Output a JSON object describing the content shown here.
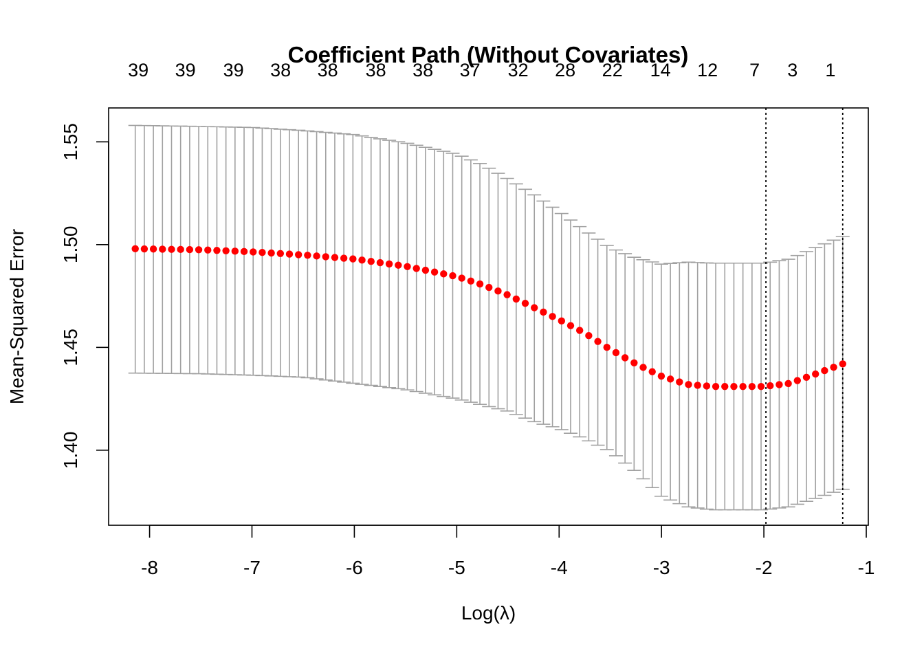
{
  "chart_data": {
    "type": "scatter",
    "title": "Coefficient Path (Without Covariates)",
    "xlabel": "Log(λ)",
    "ylabel": "Mean-Squared Error",
    "xlim": [
      -8.4,
      -0.98
    ],
    "ylim": [
      1.3635,
      1.5665
    ],
    "x_ticks": [
      -8,
      -7,
      -6,
      -5,
      -4,
      -3,
      -2,
      -1
    ],
    "x_tick_labels": [
      "-8",
      "-7",
      "-6",
      "-5",
      "-4",
      "-3",
      "-2",
      "-1"
    ],
    "y_ticks": [
      1.4,
      1.45,
      1.5,
      1.55
    ],
    "y_tick_labels": [
      "1.40",
      "1.45",
      "1.50",
      "1.55"
    ],
    "top_counts": {
      "labels": [
        "39",
        "39",
        "39",
        "38",
        "38",
        "38",
        "38",
        "37",
        "32",
        "28",
        "22",
        "14",
        "12",
        "7",
        "3",
        "1"
      ],
      "x": [
        -8.11,
        -7.65,
        -7.18,
        -6.72,
        -6.26,
        -5.79,
        -5.33,
        -4.87,
        -4.4,
        -3.94,
        -3.48,
        -3.01,
        -2.55,
        -2.09,
        -1.72,
        -1.35
      ]
    },
    "vlines": [
      -1.98,
      -1.23
    ],
    "point_color": "#ff0000",
    "errorbar_color": "#a0a0a0",
    "mse_knots": {
      "x": [
        -8.14,
        -7.5,
        -7.0,
        -6.5,
        -6.0,
        -5.5,
        -5.0,
        -4.75,
        -4.5,
        -4.25,
        -4.0,
        -3.75,
        -3.5,
        -3.25,
        -3.0,
        -2.75,
        -2.5,
        -2.25,
        -2.0,
        -1.75,
        -1.5,
        -1.23
      ],
      "mse": [
        1.498,
        1.4975,
        1.4965,
        1.495,
        1.493,
        1.4895,
        1.4845,
        1.4805,
        1.4755,
        1.4695,
        1.4635,
        1.457,
        1.449,
        1.442,
        1.436,
        1.432,
        1.431,
        1.431,
        1.431,
        1.4325,
        1.437,
        1.442
      ],
      "upper": [
        1.558,
        1.5575,
        1.557,
        1.5555,
        1.5535,
        1.5495,
        1.544,
        1.539,
        1.532,
        1.5245,
        1.516,
        1.507,
        1.4985,
        1.4935,
        1.4905,
        1.4915,
        1.491,
        1.491,
        1.491,
        1.493,
        1.4985,
        1.504
      ],
      "lower": [
        1.4375,
        1.4372,
        1.4365,
        1.4355,
        1.4325,
        1.4295,
        1.425,
        1.422,
        1.419,
        1.414,
        1.4105,
        1.4055,
        1.3995,
        1.3895,
        1.3775,
        1.3725,
        1.371,
        1.371,
        1.371,
        1.3725,
        1.3765,
        1.381
      ]
    },
    "n_points": 79
  }
}
